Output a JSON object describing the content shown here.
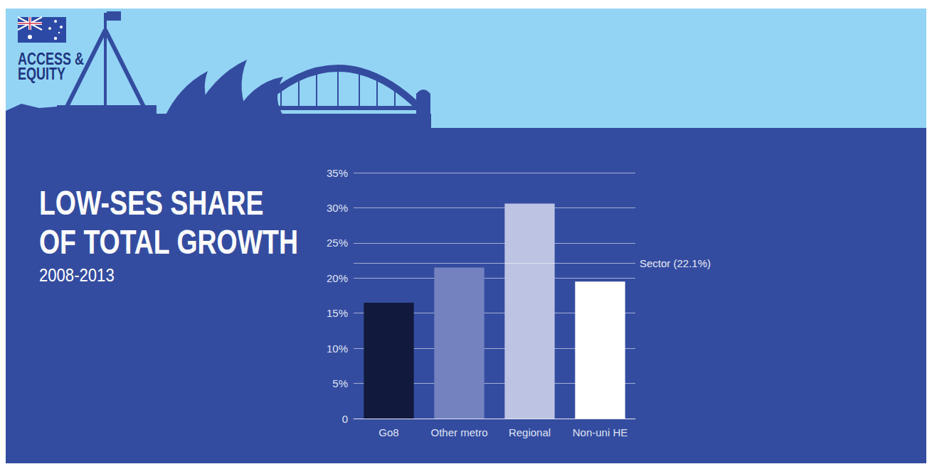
{
  "header": {
    "text": "ACCESS & EQUITY"
  },
  "chart_data": {
    "type": "bar",
    "title": "LOW-SES SHARE OF TOTAL GROWTH",
    "subtitle": "2008-2013",
    "categories": [
      "Go8",
      "Other metro",
      "Regional",
      "Non-uni HE"
    ],
    "values": [
      16.5,
      21.5,
      30.6,
      19.5
    ],
    "colors": [
      "#111a3d",
      "#7483c0",
      "#bdc3e3",
      "#ffffff"
    ],
    "ylim": [
      0,
      35
    ],
    "yticks": [
      0,
      {
        "value": 5,
        "label": "5%"
      },
      {
        "value": 10,
        "label": "10%"
      },
      {
        "value": 15,
        "label": "15%"
      },
      {
        "value": 20,
        "label": "20%"
      },
      {
        "value": 25,
        "label": "25%"
      },
      {
        "value": 30,
        "label": "30%"
      },
      {
        "value": 35,
        "label": "35%"
      }
    ],
    "grid": true,
    "annotations": [
      {
        "text": "Sector (22.1%)",
        "y": 22.1
      }
    ]
  }
}
